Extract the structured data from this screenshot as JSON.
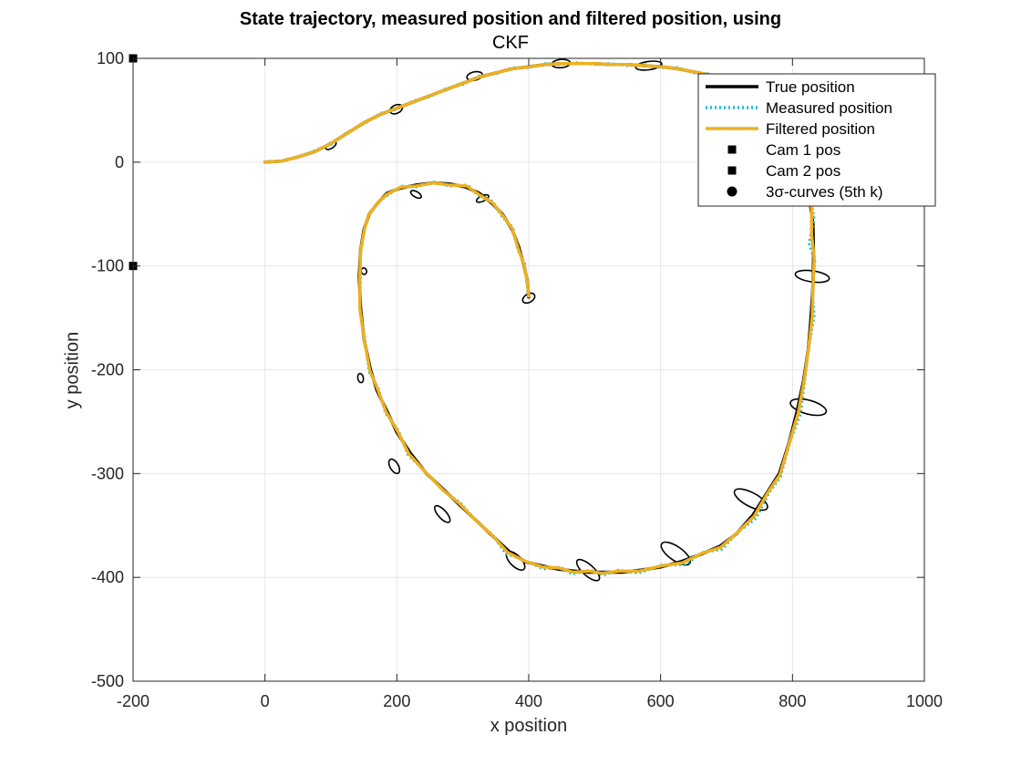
{
  "chart_data": {
    "type": "line",
    "title": [
      "State trajectory, measured position and filtered position, using",
      "CKF"
    ],
    "xlabel": "x position",
    "ylabel": "y position",
    "xlim": [
      -200,
      1000
    ],
    "ylim": [
      -500,
      100
    ],
    "xticks": [
      -200,
      0,
      200,
      400,
      600,
      800,
      1000
    ],
    "yticks": [
      -500,
      -400,
      -300,
      -200,
      -100,
      0,
      100
    ],
    "grid": true,
    "legend_position": "top-right",
    "series": [
      {
        "name": "True position",
        "color": "#000000",
        "style": "solid",
        "x": [
          0,
          25,
          50,
          75,
          100,
          125,
          150,
          175,
          200,
          225,
          250,
          275,
          300,
          325,
          350,
          375,
          400,
          425,
          450,
          475,
          500,
          525,
          550,
          575,
          600,
          625,
          650,
          675,
          700,
          725,
          750,
          770,
          790,
          805,
          818,
          826,
          831,
          832,
          831,
          828,
          824,
          817,
          807,
          795,
          780,
          760,
          740,
          715,
          690,
          660,
          630,
          600,
          570,
          540,
          510,
          490,
          470,
          445,
          420,
          395,
          370,
          345,
          320,
          295,
          270,
          245,
          220,
          200,
          185,
          170,
          160,
          150,
          145,
          143,
          145,
          150,
          158,
          170,
          185,
          205,
          230,
          255,
          280,
          305,
          325,
          345,
          360,
          375,
          385,
          393,
          398,
          400
        ],
        "y": [
          0,
          1,
          5,
          10,
          18,
          28,
          38,
          46,
          52,
          58,
          64,
          70,
          76,
          82,
          86,
          90,
          92,
          94,
          95,
          95,
          95,
          94,
          94,
          93,
          92,
          90,
          87,
          84,
          78,
          70,
          60,
          48,
          30,
          10,
          -10,
          -35,
          -60,
          -90,
          -120,
          -150,
          -180,
          -210,
          -240,
          -270,
          -300,
          -320,
          -340,
          -358,
          -370,
          -378,
          -385,
          -390,
          -393,
          -395,
          -395,
          -395,
          -394,
          -392,
          -389,
          -385,
          -375,
          -360,
          -345,
          -330,
          -315,
          -300,
          -280,
          -260,
          -240,
          -220,
          -200,
          -170,
          -140,
          -110,
          -85,
          -65,
          -50,
          -40,
          -30,
          -25,
          -22,
          -20,
          -21,
          -24,
          -30,
          -40,
          -50,
          -65,
          -82,
          -100,
          -115,
          -130
        ]
      },
      {
        "name": "Measured position",
        "color": "#17becf",
        "style": "dotted",
        "x": [
          0,
          25,
          50,
          75,
          100,
          125,
          150,
          175,
          200,
          225,
          250,
          275,
          300,
          325,
          350,
          375,
          400,
          425,
          450,
          475,
          500,
          525,
          550,
          575,
          600,
          625,
          650,
          675,
          700,
          725,
          750,
          770,
          792,
          808,
          822,
          833,
          825,
          834,
          830,
          833,
          824,
          819,
          812,
          797,
          782,
          765,
          745,
          718,
          693,
          664,
          636,
          603,
          566,
          536,
          513,
          493,
          466,
          448,
          423,
          391,
          365,
          344,
          322,
          296,
          271,
          243,
          217,
          202,
          183,
          172,
          158,
          151,
          144,
          145,
          144,
          152,
          156,
          172,
          186,
          207,
          228,
          257,
          279,
          307,
          323,
          346,
          359,
          376,
          383,
          394,
          397,
          400
        ],
        "y": [
          0,
          1,
          5,
          11,
          17,
          29,
          37,
          47,
          51,
          59,
          63,
          71,
          75,
          83,
          85,
          91,
          91,
          95,
          94,
          96,
          94,
          95,
          93,
          94,
          91,
          91,
          86,
          85,
          77,
          71,
          59,
          49,
          29,
          11,
          -11,
          -55,
          -78,
          -95,
          -122,
          -148,
          -182,
          -208,
          -243,
          -268,
          -303,
          -318,
          -343,
          -356,
          -373,
          -376,
          -388,
          -388,
          -396,
          -393,
          -398,
          -393,
          -397,
          -390,
          -392,
          -383,
          -377,
          -358,
          -347,
          -328,
          -317,
          -298,
          -282,
          -258,
          -242,
          -218,
          -202,
          -168,
          -142,
          -108,
          -87,
          -63,
          -52,
          -38,
          -32,
          -23,
          -24,
          -19,
          -23,
          -22,
          -32,
          -38,
          -52,
          -63,
          -84,
          -98,
          -117,
          -128
        ]
      },
      {
        "name": "Filtered position",
        "color": "#edb120",
        "style": "solid",
        "x": [
          0,
          25,
          50,
          75,
          100,
          125,
          150,
          175,
          200,
          225,
          250,
          275,
          300,
          325,
          350,
          375,
          400,
          425,
          450,
          475,
          500,
          525,
          550,
          575,
          600,
          625,
          650,
          675,
          700,
          725,
          750,
          770,
          791,
          806,
          820,
          829,
          829,
          833,
          831,
          830,
          824,
          818,
          809,
          796,
          781,
          762,
          742,
          716,
          691,
          662,
          633,
          601,
          568,
          538,
          511,
          491,
          468,
          446,
          421,
          393,
          368,
          344,
          321,
          295,
          270,
          244,
          218,
          201,
          184,
          171,
          159,
          150,
          144,
          144,
          145,
          151,
          157,
          171,
          185,
          206,
          229,
          256,
          280,
          306,
          324,
          345,
          360,
          375,
          384,
          393,
          398,
          400
        ],
        "y": [
          0,
          1,
          5,
          10,
          18,
          28,
          38,
          46,
          52,
          58,
          64,
          70,
          76,
          82,
          86,
          90,
          92,
          94,
          95,
          95,
          95,
          94,
          94,
          93,
          92,
          90,
          87,
          84,
          78,
          70,
          60,
          48,
          30,
          10,
          -10,
          -45,
          -70,
          -92,
          -121,
          -149,
          -181,
          -209,
          -241,
          -269,
          -301,
          -319,
          -341,
          -357,
          -371,
          -377,
          -386,
          -389,
          -394,
          -394,
          -396,
          -394,
          -395,
          -391,
          -390,
          -384,
          -376,
          -359,
          -346,
          -329,
          -316,
          -299,
          -281,
          -259,
          -241,
          -219,
          -201,
          -169,
          -141,
          -109,
          -86,
          -64,
          -51,
          -39,
          -31,
          -24,
          -23,
          -20,
          -22,
          -23,
          -31,
          -39,
          -51,
          -64,
          -83,
          -99,
          -116,
          -129
        ]
      }
    ],
    "markers": [
      {
        "name": "Cam 1 pos",
        "x": -200,
        "y": 100,
        "shape": "square",
        "color": "#000000"
      },
      {
        "name": "Cam 2 pos",
        "x": -200,
        "y": -100,
        "shape": "square",
        "color": "#000000"
      }
    ],
    "ellipses_legend": "3σ-curves (5th k)",
    "ellipses": [
      {
        "cx": 100,
        "cy": 16,
        "rx": 9,
        "ry": 2,
        "angle": 33
      },
      {
        "cx": 199,
        "cy": 51,
        "rx": 10,
        "ry": 3,
        "angle": 25
      },
      {
        "cx": 318,
        "cy": 83,
        "rx": 12,
        "ry": 3,
        "angle": 12
      },
      {
        "cx": 449,
        "cy": 95,
        "rx": 14,
        "ry": 3,
        "angle": 5
      },
      {
        "cx": 582,
        "cy": 93,
        "rx": 20,
        "ry": 3,
        "angle": 8
      },
      {
        "cx": 830,
        "cy": -110,
        "rx": 26,
        "ry": 4,
        "angle": -8
      },
      {
        "cx": 824,
        "cy": -236,
        "rx": 28,
        "ry": 5,
        "angle": -15
      },
      {
        "cx": 737,
        "cy": -325,
        "rx": 28,
        "ry": 5,
        "angle": -28
      },
      {
        "cx": 623,
        "cy": -377,
        "rx": 26,
        "ry": 5,
        "angle": -35
      },
      {
        "cx": 490,
        "cy": -393,
        "rx": 22,
        "ry": 4,
        "angle": -42
      },
      {
        "cx": 380,
        "cy": -384,
        "rx": 18,
        "ry": 4,
        "angle": -45
      },
      {
        "cx": 269,
        "cy": -339,
        "rx": 16,
        "ry": 3,
        "angle": -48
      },
      {
        "cx": 196,
        "cy": -293,
        "rx": 12,
        "ry": 3,
        "angle": -60
      },
      {
        "cx": 145,
        "cy": -208,
        "rx": 7,
        "ry": 2,
        "angle": -80
      },
      {
        "cx": 150,
        "cy": -105,
        "rx": 5,
        "ry": 2,
        "angle": -70
      },
      {
        "cx": 229,
        "cy": -31,
        "rx": 9,
        "ry": 2,
        "angle": -30
      },
      {
        "cx": 330,
        "cy": -35,
        "rx": 10,
        "ry": 2,
        "angle": 25
      },
      {
        "cx": 400,
        "cy": -131,
        "rx": 10,
        "ry": 3,
        "angle": 30
      }
    ],
    "legend": [
      "True position",
      "Measured position",
      "Filtered position",
      "Cam 1 pos",
      "Cam 2 pos",
      "3σ-curves (5th k)"
    ]
  }
}
